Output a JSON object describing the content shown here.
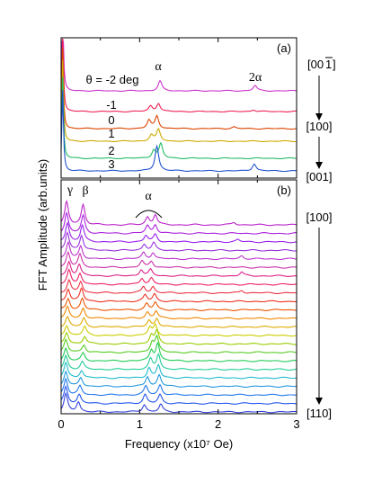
{
  "chart_data": [
    {
      "panel": "(a)",
      "type": "line",
      "xlim": [
        0,
        3
      ],
      "xticks": [
        0,
        1,
        2,
        3
      ],
      "xtick_labels": [
        "0",
        "1",
        "2",
        "3"
      ],
      "xlabel": "Frequency (x10⁷ Oe)",
      "ylabel": "FFT Amplitude (arb.units)",
      "grid": false,
      "angle_header": "θ = -2 deg",
      "annotations": [
        "α",
        "2α"
      ],
      "direction_labels": [
        "[00",
        "1",
        "]",
        "[100]",
        "[001]"
      ],
      "series": [
        {
          "name": "θ = -2 deg",
          "label": "",
          "color": "#cc33cc",
          "peaks": [
            [
              0.02,
              9.0
            ],
            [
              1.26,
              1.1
            ],
            [
              2.47,
              0.6
            ]
          ]
        },
        {
          "name": "-1",
          "label": "-1",
          "color": "#ee2255",
          "peaks": [
            [
              0.02,
              9.0
            ],
            [
              1.14,
              0.6
            ],
            [
              1.24,
              0.9
            ],
            [
              2.45,
              0.2
            ]
          ]
        },
        {
          "name": "0",
          "label": "0",
          "color": "#dd4400",
          "peaks": [
            [
              0.02,
              9.0
            ],
            [
              1.12,
              0.9
            ],
            [
              1.22,
              1.4
            ],
            [
              2.2,
              0.2
            ]
          ]
        },
        {
          "name": "1",
          "label": "1",
          "color": "#ccaa00",
          "peaks": [
            [
              0.02,
              9.0
            ],
            [
              1.15,
              0.7
            ],
            [
              1.24,
              1.3
            ]
          ]
        },
        {
          "name": "2",
          "label": "2",
          "color": "#22bb66",
          "peaks": [
            [
              0.02,
              9.0
            ],
            [
              1.18,
              0.9
            ],
            [
              1.27,
              1.6
            ]
          ]
        },
        {
          "name": "3",
          "label": "3",
          "color": "#2255cc",
          "peaks": [
            [
              0.02,
              9.0
            ],
            [
              1.22,
              2.8
            ],
            [
              2.46,
              0.8
            ]
          ]
        }
      ]
    },
    {
      "panel": "(b)",
      "type": "line",
      "xlim": [
        0,
        3
      ],
      "xticks": [
        0,
        1,
        2,
        3
      ],
      "xtick_labels": [
        "0",
        "1",
        "2",
        "3"
      ],
      "xlabel": "Frequency (x10⁷ Oe)",
      "ylabel": "FFT Amplitude (arb.units)",
      "grid": false,
      "annotations": [
        "γ",
        "β",
        "α"
      ],
      "direction_labels": [
        "[100]",
        "[110]"
      ],
      "series": [
        {
          "color": "#bb22cc",
          "peaks": [
            [
              0.07,
              1.8
            ],
            [
              0.28,
              1.6
            ],
            [
              1.1,
              0.6
            ],
            [
              1.2,
              0.8
            ],
            [
              2.2,
              0.2
            ]
          ]
        },
        {
          "color": "#aa22dd",
          "peaks": [
            [
              0.07,
              1.6
            ],
            [
              0.28,
              1.4
            ],
            [
              1.1,
              0.6
            ],
            [
              1.2,
              0.7
            ]
          ]
        },
        {
          "color": "#9922ee",
          "peaks": [
            [
              0.08,
              1.5
            ],
            [
              0.27,
              1.3
            ],
            [
              1.08,
              0.5
            ],
            [
              1.2,
              0.6
            ],
            [
              2.25,
              0.2
            ]
          ]
        },
        {
          "color": "#9933dd",
          "peaks": [
            [
              0.08,
              1.4
            ],
            [
              0.26,
              1.2
            ],
            [
              1.06,
              0.5
            ],
            [
              1.18,
              0.6
            ]
          ]
        },
        {
          "color": "#bb33cc",
          "peaks": [
            [
              0.09,
              1.3
            ],
            [
              0.25,
              1.0
            ],
            [
              1.05,
              0.5
            ],
            [
              1.17,
              0.5
            ],
            [
              2.3,
              0.25
            ]
          ]
        },
        {
          "color": "#cc33aa",
          "peaks": [
            [
              0.09,
              1.2
            ],
            [
              0.24,
              1.0
            ],
            [
              1.03,
              0.5
            ],
            [
              1.15,
              0.5
            ]
          ]
        },
        {
          "color": "#dd2288",
          "peaks": [
            [
              0.1,
              1.1
            ],
            [
              0.23,
              0.9
            ],
            [
              1.02,
              0.5
            ],
            [
              1.14,
              0.5
            ],
            [
              2.3,
              0.3
            ]
          ]
        },
        {
          "color": "#ee2266",
          "peaks": [
            [
              0.1,
              1.1
            ],
            [
              0.24,
              0.9
            ],
            [
              1.03,
              0.5
            ],
            [
              1.15,
              0.5
            ]
          ]
        },
        {
          "color": "#ee3344",
          "peaks": [
            [
              0.1,
              1.0
            ],
            [
              0.25,
              0.9
            ],
            [
              1.05,
              0.5
            ],
            [
              1.17,
              0.5
            ],
            [
              2.3,
              0.2
            ]
          ]
        },
        {
          "color": "#ee3322",
          "peaks": [
            [
              0.09,
              1.0
            ],
            [
              0.26,
              1.0
            ],
            [
              1.07,
              0.5
            ],
            [
              1.19,
              0.6
            ]
          ]
        },
        {
          "color": "#ee5500",
          "peaks": [
            [
              0.09,
              0.9
            ],
            [
              0.27,
              0.9
            ],
            [
              1.09,
              0.5
            ],
            [
              1.2,
              0.6
            ]
          ]
        },
        {
          "color": "#ee8800",
          "peaks": [
            [
              0.08,
              0.9
            ],
            [
              0.28,
              0.8
            ],
            [
              1.1,
              0.5
            ],
            [
              1.21,
              0.6
            ]
          ]
        },
        {
          "color": "#ddaa00",
          "peaks": [
            [
              0.08,
              0.8
            ],
            [
              0.29,
              0.7
            ],
            [
              1.12,
              0.5
            ],
            [
              1.22,
              0.7
            ]
          ]
        },
        {
          "color": "#cccc00",
          "peaks": [
            [
              0.07,
              0.8
            ],
            [
              0.3,
              0.7
            ],
            [
              1.13,
              0.6
            ],
            [
              1.2,
              0.8
            ]
          ]
        },
        {
          "color": "#99cc00",
          "peaks": [
            [
              0.07,
              0.9
            ],
            [
              0.3,
              0.6
            ],
            [
              1.15,
              0.7
            ],
            [
              1.22,
              1.0
            ]
          ]
        },
        {
          "color": "#55cc22",
          "peaks": [
            [
              0.06,
              1.0
            ],
            [
              0.29,
              0.6
            ],
            [
              1.16,
              0.8
            ],
            [
              1.22,
              1.2
            ]
          ]
        },
        {
          "color": "#22cc55",
          "peaks": [
            [
              0.06,
              1.0
            ],
            [
              0.28,
              0.6
            ],
            [
              1.15,
              0.8
            ],
            [
              1.23,
              1.4
            ]
          ]
        },
        {
          "color": "#22cc99",
          "peaks": [
            [
              0.06,
              1.1
            ],
            [
              0.27,
              0.6
            ],
            [
              1.14,
              0.8
            ],
            [
              1.24,
              1.2
            ]
          ]
        },
        {
          "color": "#22bbcc",
          "peaks": [
            [
              0.06,
              1.2
            ],
            [
              0.26,
              0.6
            ],
            [
              1.12,
              0.8
            ],
            [
              1.24,
              1.0
            ]
          ]
        },
        {
          "color": "#2299dd",
          "peaks": [
            [
              0.06,
              1.2
            ],
            [
              0.25,
              0.7
            ],
            [
              1.1,
              0.8
            ],
            [
              1.25,
              0.9
            ]
          ]
        },
        {
          "color": "#2277ee",
          "peaks": [
            [
              0.06,
              1.3
            ],
            [
              0.24,
              0.7
            ],
            [
              1.08,
              0.7
            ],
            [
              1.26,
              0.8
            ]
          ]
        },
        {
          "color": "#2255ee",
          "peaks": [
            [
              0.06,
              1.3
            ],
            [
              0.23,
              0.7
            ],
            [
              1.07,
              0.7
            ],
            [
              1.26,
              0.7
            ]
          ]
        },
        {
          "color": "#3344dd",
          "peaks": [
            [
              0.06,
              1.4
            ],
            [
              0.22,
              0.8
            ],
            [
              1.06,
              0.6
            ],
            [
              1.27,
              0.6
            ]
          ]
        }
      ]
    }
  ]
}
